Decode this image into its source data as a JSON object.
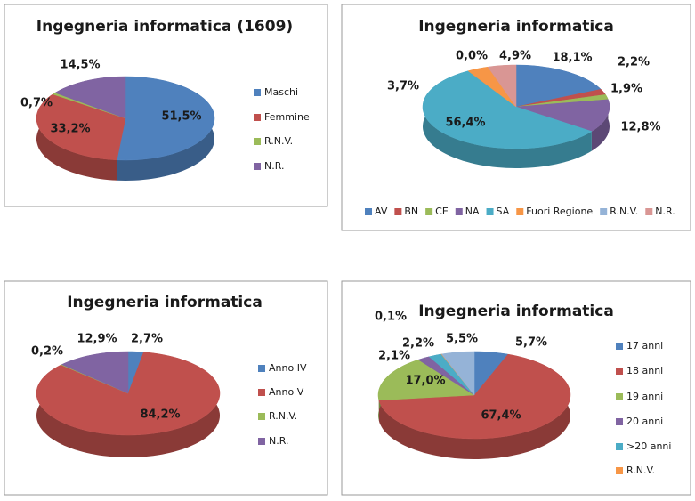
{
  "chart_data": [
    {
      "type": "pie",
      "title": "Ingegneria informatica (1609)",
      "categories": [
        "Maschi",
        "Femmine",
        "R.N.V.",
        "N.R."
      ],
      "values": [
        51.5,
        33.2,
        0.7,
        14.5
      ],
      "value_labels": [
        "51,5%",
        "33,2%",
        "0,7%",
        "14,5%"
      ],
      "colors": [
        "#4f81bd",
        "#c0504d",
        "#9bbb59",
        "#8064a2"
      ],
      "legend": "right"
    },
    {
      "type": "pie",
      "title": "Ingegneria informatica",
      "categories": [
        "AV",
        "BN",
        "CE",
        "NA",
        "SA",
        "Fuori Regione",
        "R.N.V.",
        "N.R."
      ],
      "values": [
        18.1,
        2.2,
        1.9,
        12.8,
        56.4,
        3.7,
        0.0,
        4.9
      ],
      "value_labels": [
        "18,1%",
        "2,2%",
        "1,9%",
        "12,8%",
        "56,4%",
        "3,7%",
        "0,0%",
        "4,9%"
      ],
      "colors": [
        "#4f81bd",
        "#c0504d",
        "#9bbb59",
        "#8064a2",
        "#4bacc6",
        "#f79646",
        "#95b3d7",
        "#d99694"
      ],
      "legend": "bottom"
    },
    {
      "type": "pie",
      "title": "Ingegneria informatica",
      "categories": [
        "Anno IV",
        "Anno V",
        "R.N.V.",
        "N.R."
      ],
      "values": [
        2.7,
        84.2,
        0.2,
        12.9
      ],
      "value_labels": [
        "2,7%",
        "84,2%",
        "0,2%",
        "12,9%"
      ],
      "colors": [
        "#4f81bd",
        "#c0504d",
        "#9bbb59",
        "#8064a2"
      ],
      "legend": "right"
    },
    {
      "type": "pie",
      "title": "Ingegneria informatica",
      "categories": [
        "17 anni",
        "18 anni",
        "19 anni",
        "20 anni",
        ">20 anni",
        "R.N.V.",
        null
      ],
      "values": [
        5.7,
        67.4,
        17.0,
        2.1,
        2.2,
        0.1,
        5.5
      ],
      "value_labels": [
        "5,7%",
        "67,4%",
        "17,0%",
        "2,1%",
        "2,2%",
        "0,1%",
        "5,5%"
      ],
      "colors": [
        "#4f81bd",
        "#c0504d",
        "#9bbb59",
        "#8064a2",
        "#4bacc6",
        "#f79646",
        "#95b3d7"
      ],
      "legend": "right"
    }
  ]
}
